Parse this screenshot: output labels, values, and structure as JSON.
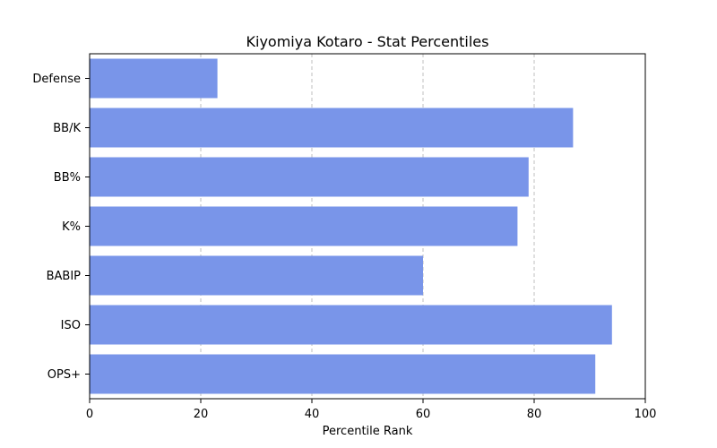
{
  "chart_data": {
    "type": "bar",
    "orientation": "horizontal",
    "title": "Kiyomiya Kotaro - Stat Percentiles",
    "xlabel": "Percentile Rank",
    "ylabel": "",
    "categories": [
      "Defense",
      "BB/K",
      "BB%",
      "K%",
      "BABIP",
      "ISO",
      "OPS+"
    ],
    "values": [
      23,
      87,
      79,
      77,
      60,
      94,
      91
    ],
    "xlim": [
      0,
      100
    ],
    "xticks": [
      "0",
      "20",
      "40",
      "60",
      "80",
      "100"
    ],
    "grid": "vertical dashed",
    "bar_color": "#7995e9"
  }
}
